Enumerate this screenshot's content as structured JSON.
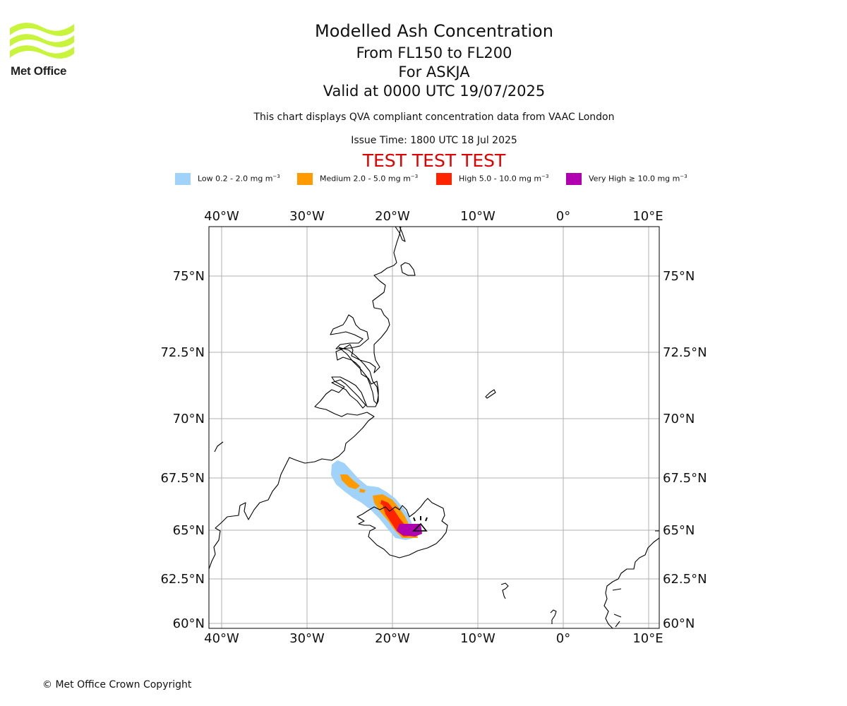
{
  "header": {
    "logo_text": "Met Office",
    "title": "Modelled Ash Concentration",
    "levels": "From FL150 to FL200",
    "volcano": "For ASKJA",
    "valid": "Valid at 0000 UTC 19/07/2025",
    "subtitle": "This chart displays QVA compliant concentration data from VAAC London",
    "issue_time": "Issue Time: 1800 UTC 18 Jul 2025",
    "test_banner": "TEST TEST TEST"
  },
  "legend": [
    {
      "label": "Low 0.2 - 2.0 mg m",
      "exp": "−3",
      "color": "#a0d2fa"
    },
    {
      "label": "Medium 2.0 - 5.0 mg m",
      "exp": "−3",
      "color": "#ff9a00"
    },
    {
      "label": "High 5.0 - 10.0 mg m",
      "exp": "−3",
      "color": "#ff2400"
    },
    {
      "label": "Very High  ≥  10.0 mg m",
      "exp": "−3",
      "color": "#b000b0"
    }
  ],
  "map": {
    "lon_ticks": [
      "40°W",
      "30°W",
      "20°W",
      "10°W",
      "0°",
      "10°E"
    ],
    "lat_ticks": [
      "75°N",
      "72.5°N",
      "70°N",
      "67.5°N",
      "65°N",
      "62.5°N",
      "60°N"
    ],
    "volcano_marker": "volcano-icon",
    "coastline_color": "#000000",
    "grid_color": "#b0b0b0"
  },
  "footer": {
    "copyright": "© Met Office Crown Copyright"
  }
}
